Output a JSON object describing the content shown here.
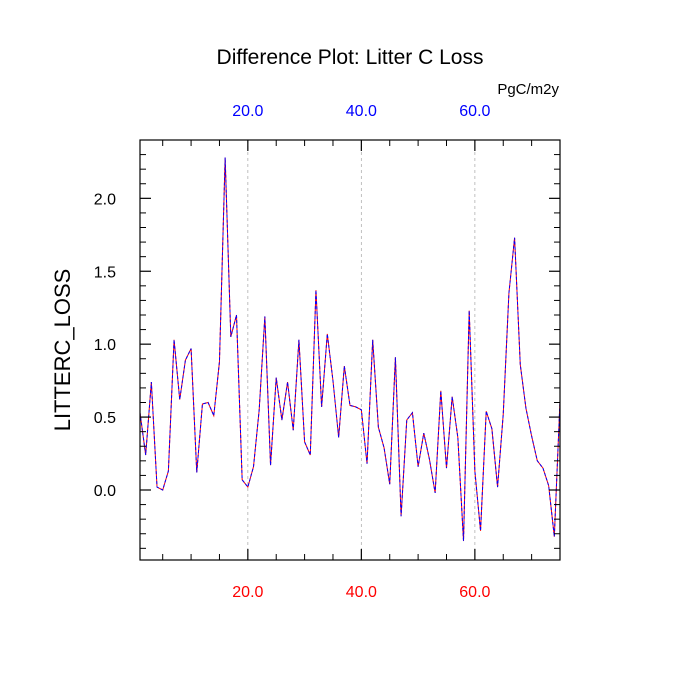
{
  "chart_data": {
    "type": "line",
    "title": "Difference Plot: Litter C Loss",
    "ylabel": "LITTERC_LOSS",
    "units": "PgC/m2y",
    "xlim": [
      1,
      75
    ],
    "ylim": [
      -0.48,
      2.4
    ],
    "x_ticks": [
      20,
      40,
      60
    ],
    "x_tick_labels": [
      "20.0",
      "40.0",
      "60.0"
    ],
    "y_ticks": [
      0,
      0.5,
      1,
      1.5,
      2
    ],
    "y_tick_labels": [
      "0.0",
      "0.5",
      "1.0",
      "1.5",
      "2.0"
    ],
    "grid": "x-dashed",
    "colors": {
      "bottom_ticks": "#ff0000",
      "top_ticks": "#0000ff",
      "series_a": "#ff0000",
      "series_b": "#0000ff",
      "grid": "#b0b0b0"
    },
    "series": [
      {
        "values": [
          0.53,
          0.24,
          0.74,
          0.02,
          0.0,
          0.13,
          1.03,
          0.62,
          0.89,
          0.97,
          0.12,
          0.59,
          0.6,
          0.51,
          0.88,
          2.28,
          1.05,
          1.2,
          0.07,
          0.02,
          0.16,
          0.55,
          1.19,
          0.17,
          0.77,
          0.48,
          0.74,
          0.41,
          1.03,
          0.33,
          0.24,
          1.37,
          0.57,
          1.07,
          0.75,
          0.36,
          0.85,
          0.58,
          0.57,
          0.55,
          0.18,
          1.03,
          0.43,
          0.29,
          0.04,
          0.91,
          -0.18,
          0.48,
          0.53,
          0.16,
          0.39,
          0.21,
          -0.02,
          0.68,
          0.15,
          0.64,
          0.36,
          -0.35,
          1.23,
          0.13,
          -0.28,
          0.54,
          0.42,
          0.02,
          0.52,
          1.35,
          1.73,
          0.86,
          0.56,
          0.37,
          0.2,
          0.15,
          0.03,
          -0.32,
          0.61
        ]
      }
    ]
  }
}
